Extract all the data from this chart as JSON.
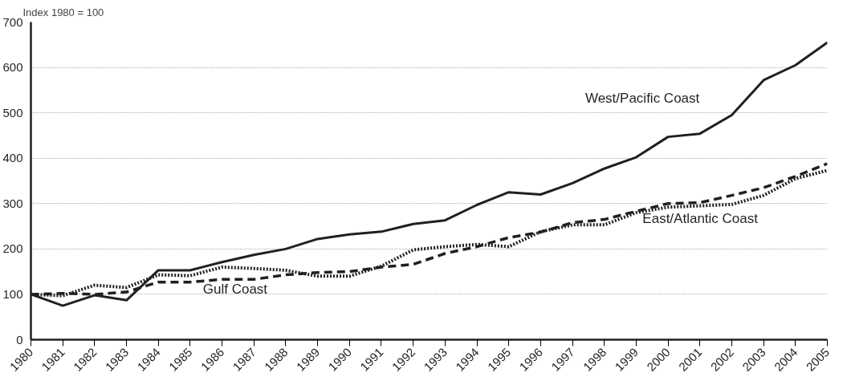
{
  "chart_data": {
    "type": "line",
    "ylabel": "Index 1980 = 100",
    "x": [
      1980,
      1981,
      1982,
      1983,
      1984,
      1985,
      1986,
      1987,
      1988,
      1989,
      1990,
      1991,
      1992,
      1993,
      1994,
      1995,
      1996,
      1997,
      1998,
      1999,
      2000,
      2001,
      2002,
      2003,
      2004,
      2005
    ],
    "series": [
      {
        "name": "West/Pacific Coast",
        "color": "#231f20",
        "line_style": "solid",
        "values": [
          100,
          75,
          98,
          87,
          153,
          153,
          171,
          187,
          200,
          222,
          232,
          238,
          255,
          263,
          297,
          325,
          320,
          345,
          377,
          402,
          447,
          454,
          495,
          572,
          605,
          655
        ]
      },
      {
        "name": "Gulf Coast",
        "color": "#231f20",
        "line_style": "dashed",
        "values": [
          100,
          102,
          100,
          105,
          127,
          127,
          133,
          133,
          143,
          148,
          150,
          160,
          166,
          190,
          205,
          225,
          237,
          258,
          265,
          283,
          300,
          302,
          318,
          335,
          360,
          388
        ]
      },
      {
        "name": "East/Atlantic Coast",
        "color": "#231f20",
        "line_style": "dotted",
        "values": [
          100,
          97,
          120,
          115,
          143,
          141,
          160,
          157,
          153,
          140,
          140,
          162,
          198,
          205,
          210,
          205,
          238,
          253,
          253,
          280,
          292,
          295,
          298,
          318,
          355,
          373
        ]
      }
    ],
    "xlim": [
      1980,
      2005
    ],
    "xticks": [
      1980,
      1981,
      1982,
      1983,
      1984,
      1985,
      1986,
      1987,
      1988,
      1989,
      1990,
      1991,
      1992,
      1993,
      1994,
      1995,
      1996,
      1997,
      1998,
      1999,
      2000,
      2001,
      2002,
      2003,
      2004,
      2005
    ],
    "ylim": [
      0,
      700
    ],
    "yticks": [
      0,
      100,
      200,
      300,
      400,
      500,
      600,
      700
    ],
    "grid": "y"
  }
}
